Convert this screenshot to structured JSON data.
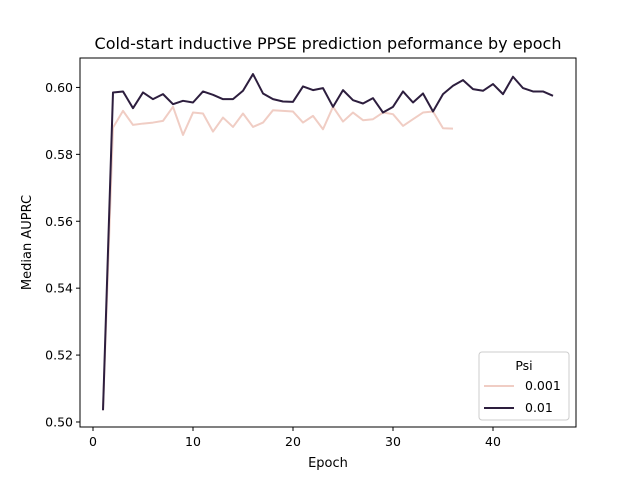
{
  "chart_data": {
    "type": "line",
    "title": "Cold-start inductive PPSE prediction peformance by epoch",
    "xlabel": "Epoch",
    "ylabel": "Median AUPRC",
    "xlim": [
      -1.3,
      48.3
    ],
    "ylim": [
      0.4985,
      0.6088
    ],
    "xticks": [
      0,
      10,
      20,
      30,
      40
    ],
    "yticks": [
      0.5,
      0.52,
      0.54,
      0.56,
      0.58,
      0.6
    ],
    "ytick_labels": [
      "0.50",
      "0.52",
      "0.54",
      "0.56",
      "0.58",
      "0.60"
    ],
    "grid": false,
    "legend": {
      "title": "Psi",
      "position": "lower right"
    },
    "series": [
      {
        "name": "0.001",
        "color": "#f0cdc4",
        "x": [
          1,
          2,
          3,
          4,
          5,
          6,
          7,
          8,
          9,
          10,
          11,
          12,
          13,
          14,
          15,
          16,
          17,
          18,
          19,
          20,
          21,
          22,
          23,
          24,
          25,
          26,
          27,
          28,
          29,
          30,
          31,
          32,
          33,
          34,
          35,
          36
        ],
        "y": [
          0.5035,
          0.588,
          0.593,
          0.5888,
          0.5892,
          0.5895,
          0.59,
          0.5942,
          0.5858,
          0.5925,
          0.5922,
          0.5868,
          0.591,
          0.5882,
          0.5922,
          0.5882,
          0.5895,
          0.5932,
          0.593,
          0.5928,
          0.5895,
          0.5915,
          0.5875,
          0.5942,
          0.5898,
          0.5925,
          0.5902,
          0.5905,
          0.5925,
          0.592,
          0.5885,
          0.5905,
          0.5925,
          0.5928,
          0.5878,
          0.5877
        ]
      },
      {
        "name": "0.01",
        "color": "#2d1e3e",
        "x": [
          1,
          2,
          3,
          4,
          5,
          6,
          7,
          8,
          9,
          10,
          11,
          12,
          13,
          14,
          15,
          16,
          17,
          18,
          19,
          20,
          21,
          22,
          23,
          24,
          25,
          26,
          27,
          28,
          29,
          30,
          31,
          32,
          33,
          34,
          35,
          36,
          37,
          38,
          39,
          40,
          41,
          42,
          43,
          44,
          45,
          46
        ],
        "y": [
          0.5035,
          0.5985,
          0.5988,
          0.5938,
          0.5985,
          0.5965,
          0.598,
          0.595,
          0.596,
          0.5955,
          0.5988,
          0.5978,
          0.5965,
          0.5965,
          0.599,
          0.604,
          0.5982,
          0.5965,
          0.5958,
          0.5957,
          0.6003,
          0.5992,
          0.5998,
          0.5942,
          0.5992,
          0.5962,
          0.5952,
          0.5968,
          0.5925,
          0.5942,
          0.5988,
          0.5955,
          0.5982,
          0.5928,
          0.598,
          0.6005,
          0.6022,
          0.5995,
          0.599,
          0.601,
          0.598,
          0.6032,
          0.5998,
          0.5988,
          0.5988,
          0.5975
        ]
      }
    ]
  }
}
